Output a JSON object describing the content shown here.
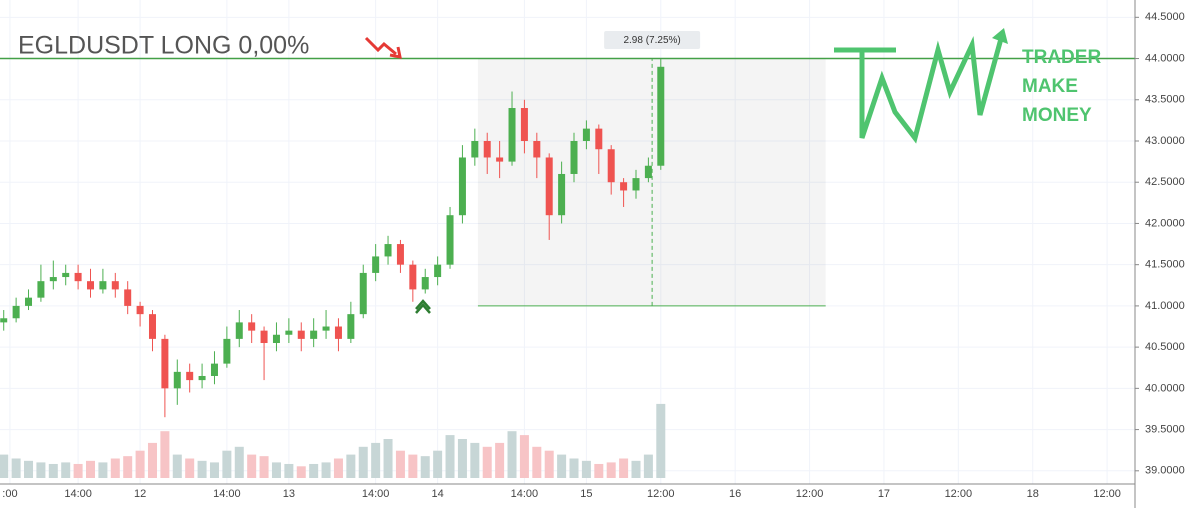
{
  "chart_data": {
    "type": "candlestick",
    "title": "EGLDUSDT  LONG  0,00%",
    "watermark": [
      "TRADER",
      "MAKE",
      "MONEY"
    ],
    "x": [
      -22,
      -20,
      -18,
      -16,
      -14,
      -12,
      -10,
      -8,
      -6,
      -4,
      -2,
      0,
      2,
      4,
      6,
      8,
      10,
      12,
      14,
      16,
      18,
      20,
      22,
      24,
      26,
      28,
      30,
      32,
      34,
      36,
      38,
      40,
      42,
      44,
      46,
      48,
      50,
      52,
      54,
      56,
      58,
      60,
      62,
      64,
      66,
      68,
      70,
      72,
      74,
      76,
      78,
      80,
      82,
      84
    ],
    "open": [
      40.8,
      40.85,
      41.0,
      41.1,
      41.3,
      41.35,
      41.4,
      41.3,
      41.2,
      41.3,
      41.2,
      41.0,
      40.9,
      40.6,
      40.0,
      40.2,
      40.1,
      40.15,
      40.3,
      40.6,
      40.8,
      40.7,
      40.55,
      40.65,
      40.7,
      40.6,
      40.7,
      40.75,
      40.6,
      40.9,
      41.4,
      41.6,
      41.75,
      41.5,
      41.2,
      41.35,
      41.5,
      42.1,
      42.8,
      43.0,
      42.8,
      42.75,
      43.4,
      43.0,
      42.8,
      42.1,
      42.6,
      43.0,
      43.15,
      42.9,
      42.5,
      42.4,
      42.55,
      42.7
    ],
    "high": [
      40.95,
      41.1,
      41.2,
      41.5,
      41.55,
      41.5,
      41.5,
      41.45,
      41.45,
      41.4,
      41.3,
      41.05,
      40.95,
      40.65,
      40.35,
      40.3,
      40.3,
      40.45,
      40.75,
      40.95,
      40.9,
      40.75,
      40.8,
      40.85,
      40.8,
      40.85,
      40.95,
      40.85,
      41.05,
      41.5,
      41.75,
      41.85,
      41.8,
      41.55,
      41.45,
      41.6,
      42.2,
      42.95,
      43.15,
      43.1,
      43.0,
      43.6,
      43.5,
      43.1,
      42.85,
      42.75,
      43.1,
      43.25,
      43.2,
      42.95,
      42.55,
      42.65,
      42.8,
      44.0
    ],
    "low": [
      40.7,
      40.8,
      40.95,
      41.05,
      41.2,
      41.25,
      41.2,
      41.1,
      41.15,
      41.1,
      40.9,
      40.75,
      40.45,
      39.65,
      39.8,
      39.95,
      40.0,
      40.05,
      40.25,
      40.5,
      40.55,
      40.1,
      40.45,
      40.55,
      40.45,
      40.5,
      40.6,
      40.45,
      40.55,
      40.85,
      41.3,
      41.5,
      41.4,
      41.05,
      41.15,
      41.25,
      41.45,
      42.0,
      42.7,
      42.6,
      42.55,
      42.7,
      42.85,
      42.55,
      41.8,
      42.0,
      42.5,
      42.9,
      42.6,
      42.35,
      42.2,
      42.3,
      42.5,
      42.65
    ],
    "close": [
      40.85,
      41.0,
      41.1,
      41.3,
      41.35,
      41.4,
      41.3,
      41.2,
      41.3,
      41.2,
      41.0,
      40.9,
      40.6,
      40.0,
      40.2,
      40.1,
      40.15,
      40.3,
      40.6,
      40.8,
      40.7,
      40.55,
      40.65,
      40.7,
      40.6,
      40.7,
      40.75,
      40.6,
      40.9,
      41.4,
      41.6,
      41.75,
      41.5,
      41.2,
      41.35,
      41.5,
      42.1,
      42.8,
      43.0,
      42.8,
      42.75,
      43.4,
      43.0,
      42.8,
      42.1,
      42.6,
      43.0,
      43.15,
      42.9,
      42.5,
      42.4,
      42.55,
      42.7,
      43.9
    ],
    "volume": [
      30,
      25,
      22,
      20,
      18,
      20,
      18,
      22,
      20,
      25,
      28,
      35,
      45,
      60,
      30,
      25,
      22,
      20,
      35,
      40,
      30,
      28,
      20,
      18,
      15,
      18,
      20,
      25,
      30,
      40,
      45,
      50,
      35,
      30,
      28,
      35,
      55,
      50,
      45,
      40,
      45,
      60,
      55,
      40,
      35,
      30,
      25,
      22,
      18,
      20,
      25,
      22,
      30,
      95
    ],
    "up_color": "#4caf50",
    "down_color": "#ef5350",
    "volume_up_color": "#c7d6d6",
    "volume_down_color": "#f7c4c6",
    "xlim": [
      -22.6,
      160.5
    ],
    "xticks": [
      {
        "value": -21,
        "label": ":00"
      },
      {
        "value": -10,
        "label": "14:00"
      },
      {
        "value": 0,
        "label": "12"
      },
      {
        "value": 14,
        "label": "14:00"
      },
      {
        "value": 24,
        "label": "13"
      },
      {
        "value": 38,
        "label": "14:00"
      },
      {
        "value": 48,
        "label": "14"
      },
      {
        "value": 62,
        "label": "14:00"
      },
      {
        "value": 72,
        "label": "15"
      },
      {
        "value": 84,
        "label": "12:00"
      },
      {
        "value": 96,
        "label": "16"
      },
      {
        "value": 108,
        "label": "12:00"
      },
      {
        "value": 120,
        "label": "17"
      },
      {
        "value": 132,
        "label": "12:00"
      },
      {
        "value": 144,
        "label": "18"
      },
      {
        "value": 156,
        "label": "12:00"
      }
    ],
    "ylim": [
      38.84,
      44.71
    ],
    "yticks": [
      {
        "value": 39,
        "label": "39.0000"
      },
      {
        "value": 39.5,
        "label": "39.5000"
      },
      {
        "value": 40,
        "label": "40.0000"
      },
      {
        "value": 40.5,
        "label": "40.5000"
      },
      {
        "value": 41,
        "label": "41.0000"
      },
      {
        "value": 41.5,
        "label": "41.5000"
      },
      {
        "value": 42,
        "label": "42.0000"
      },
      {
        "value": 42.5,
        "label": "42.5000"
      },
      {
        "value": 43,
        "label": "43.0000"
      },
      {
        "value": 43.5,
        "label": "43.5000"
      },
      {
        "value": 44,
        "label": "44.0000"
      },
      {
        "value": 44.5,
        "label": "44.5000"
      }
    ],
    "grid": true,
    "level": 44.0,
    "measure": {
      "label": "2.98  (7.25%)",
      "low": 41.0,
      "high": 44.0,
      "x_start": 54.5,
      "x_end": 110.6,
      "x": 82.6
    }
  }
}
